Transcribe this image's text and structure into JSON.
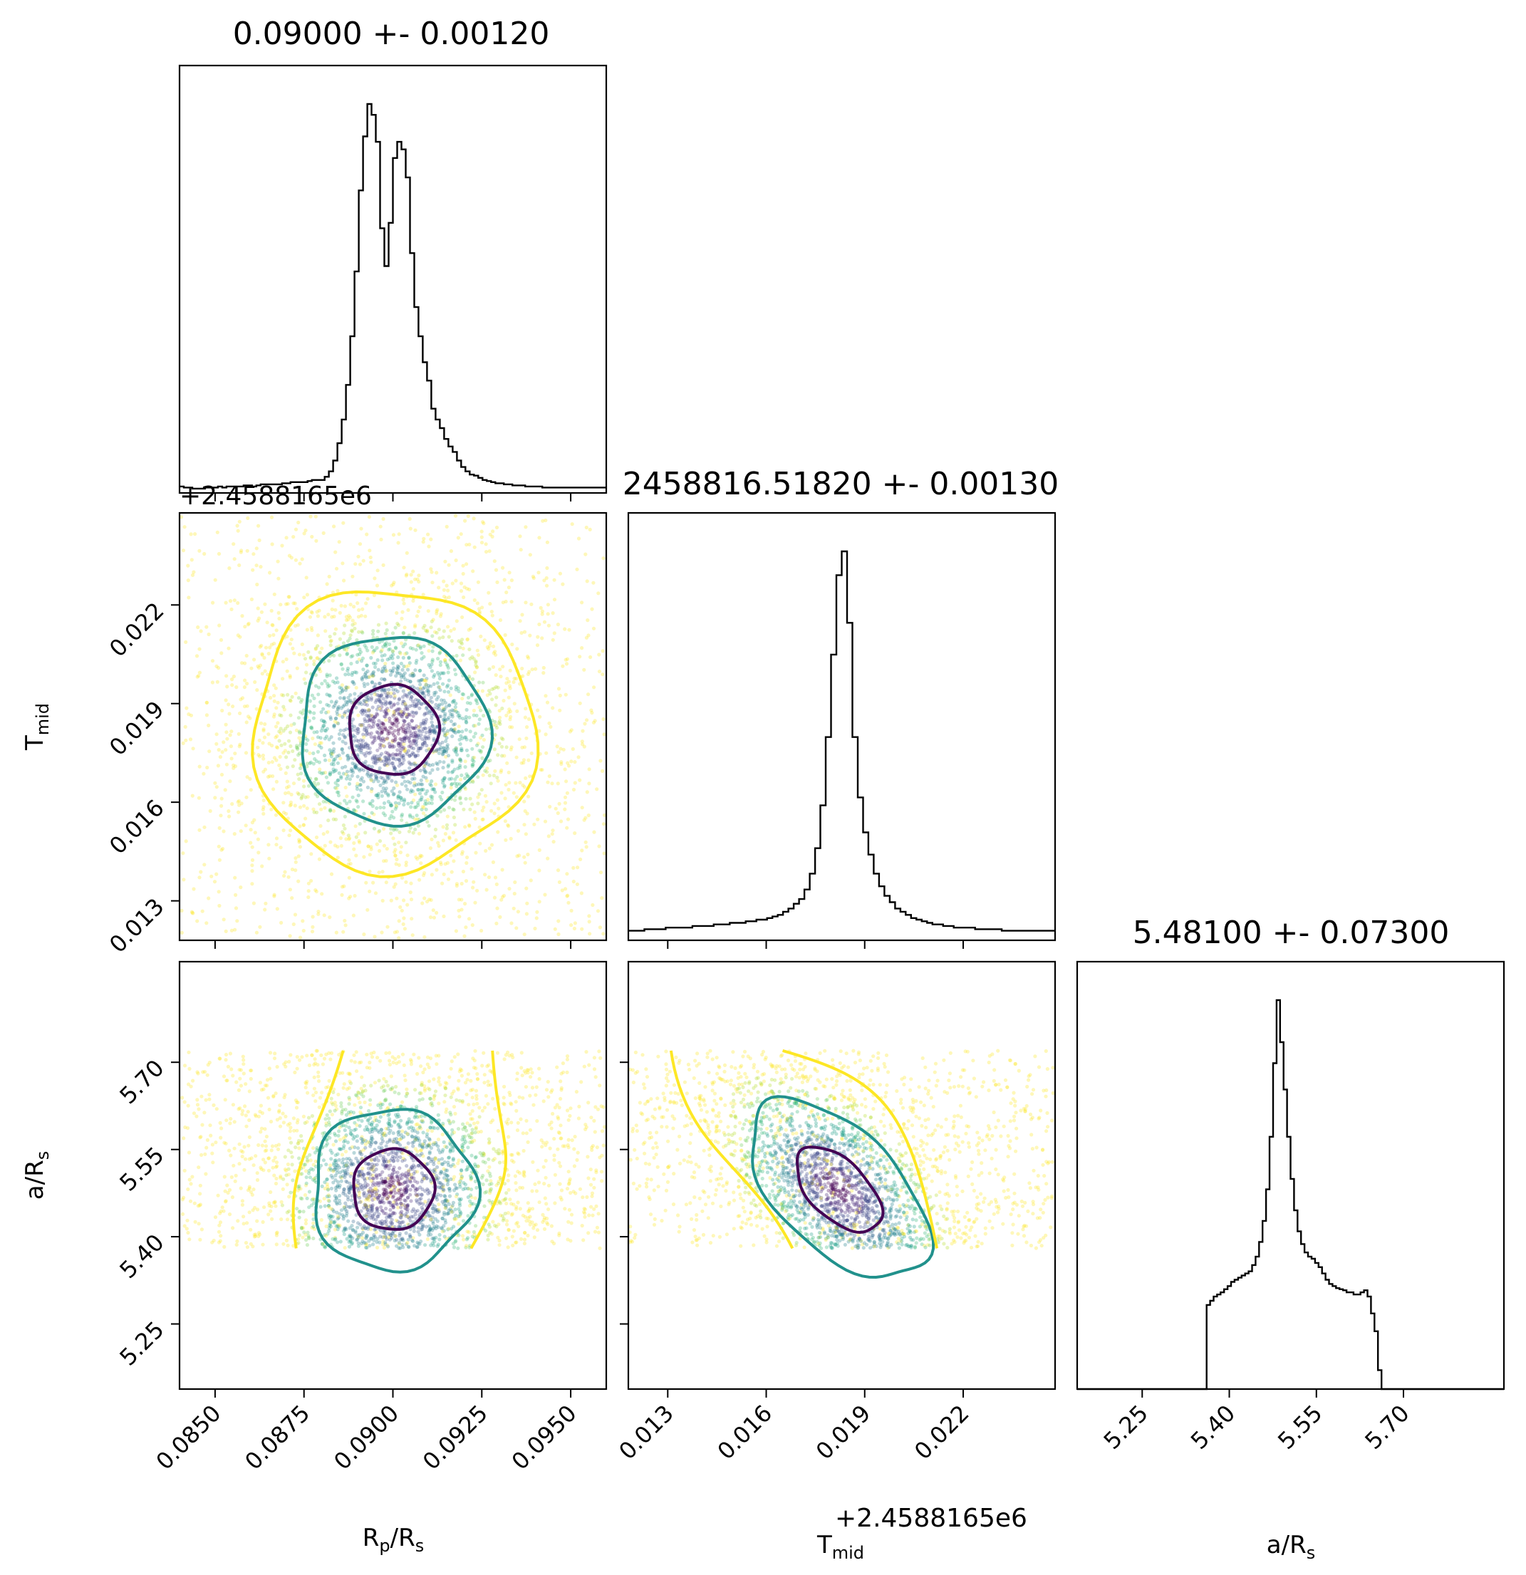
{
  "chart_data": {
    "type": "corner",
    "parameters": [
      {
        "key": "rp",
        "label_base": "R",
        "label_sub": "p",
        "label_rest": "/R",
        "label_sub2": "s",
        "range": [
          0.084,
          0.096
        ],
        "ticks": [
          "0.0850",
          "0.0875",
          "0.0900",
          "0.0925",
          "0.0950"
        ],
        "tick_values": [
          0.085,
          0.0875,
          0.09,
          0.0925,
          0.095
        ],
        "title": "0.09000 +- 0.00120",
        "median": 0.09,
        "sigma": 0.0012
      },
      {
        "key": "tmid",
        "label_base": "T",
        "label_sub": "mid",
        "label_rest": "",
        "label_sub2": "",
        "range": [
          0.0118,
          0.0248
        ],
        "ticks": [
          "0.013",
          "0.016",
          "0.019",
          "0.022"
        ],
        "tick_values": [
          0.013,
          0.016,
          0.019,
          0.022
        ],
        "offset": "+2.4588165e6",
        "title": "2458816.51820 +- 0.00130",
        "median": 0.0182,
        "sigma": 0.0013
      },
      {
        "key": "ars",
        "label_base": "a/R",
        "label_sub": "s",
        "label_rest": "",
        "label_sub2": "",
        "range": [
          5.138,
          5.873
        ],
        "ticks": [
          "5.25",
          "5.40",
          "5.55",
          "5.70"
        ],
        "tick_values": [
          5.25,
          5.4,
          5.55,
          5.7
        ],
        "title": "5.48100 +- 0.07300",
        "median": 5.481,
        "sigma": 0.073
      }
    ],
    "histograms": {
      "rp": [
        6,
        5,
        5,
        4,
        4,
        4,
        5,
        5,
        5,
        6,
        5,
        6,
        6,
        6,
        6,
        7,
        7,
        6,
        7,
        8,
        8,
        8,
        8,
        8,
        9,
        9,
        10,
        10,
        10,
        10,
        11,
        12,
        12,
        12,
        15,
        20,
        30,
        46,
        68,
        100,
        145,
        205,
        280,
        330,
        360,
        350,
        325,
        245,
        210,
        250,
        310,
        325,
        318,
        292,
        222,
        172,
        145,
        121,
        104,
        78,
        68,
        60,
        50,
        43,
        38,
        30,
        24,
        20,
        17,
        16,
        14,
        12,
        11,
        10,
        9,
        9,
        8,
        8,
        7,
        7,
        7,
        6,
        6,
        6,
        6,
        5,
        5,
        5,
        5,
        5,
        5,
        5,
        5,
        5,
        5,
        5,
        5,
        5,
        5,
        5
      ],
      "tmid": [
        6,
        6,
        6,
        7,
        7,
        7,
        7,
        8,
        8,
        8,
        8,
        8,
        9,
        9,
        9,
        9,
        10,
        10,
        10,
        11,
        11,
        11,
        12,
        12,
        13,
        13,
        14,
        15,
        16,
        18,
        20,
        23,
        26,
        32,
        42,
        58,
        85,
        128,
        180,
        230,
        245,
        200,
        128,
        90,
        68,
        54,
        42,
        34,
        28,
        24,
        20,
        18,
        16,
        14,
        13,
        12,
        11,
        10,
        10,
        9,
        9,
        8,
        8,
        8,
        8,
        7,
        7,
        7,
        7,
        7,
        6,
        6,
        6,
        6,
        6,
        6,
        6,
        6,
        6,
        6
      ],
      "ars": [
        0,
        0,
        0,
        0,
        0,
        0,
        0,
        0,
        0,
        0,
        0,
        0,
        0,
        0,
        0,
        0,
        0,
        0,
        0,
        0,
        0,
        0,
        0,
        0,
        0,
        0,
        0,
        0,
        0,
        0,
        0,
        0,
        0,
        0,
        0,
        0,
        0,
        80,
        84,
        88,
        90,
        92,
        95,
        98,
        102,
        104,
        106,
        108,
        110,
        112,
        118,
        126,
        140,
        160,
        190,
        240,
        310,
        370,
        330,
        285,
        240,
        200,
        170,
        150,
        138,
        130,
        126,
        124,
        120,
        116,
        110,
        104,
        100,
        98,
        96,
        95,
        94,
        92,
        92,
        90,
        90,
        92,
        94,
        88,
        72,
        55,
        18,
        0,
        0,
        0,
        0,
        0,
        0,
        0,
        0,
        0,
        0,
        0,
        0,
        0,
        0,
        0,
        0,
        0,
        0,
        0,
        0,
        0,
        0,
        0,
        0,
        0,
        0,
        0,
        0,
        0,
        0,
        0,
        0,
        0,
        0,
        0
      ]
    },
    "contour_colors": [
      "#440154",
      "#21918c",
      "#fde725"
    ],
    "scatter_colormap": "viridis",
    "axis_labels": {
      "rp_x": "R_p/R_s",
      "tmid_x": "T_mid",
      "tmid_y": "T_mid",
      "ars_x": "a/R_s",
      "ars_y": "a/R_s"
    }
  }
}
